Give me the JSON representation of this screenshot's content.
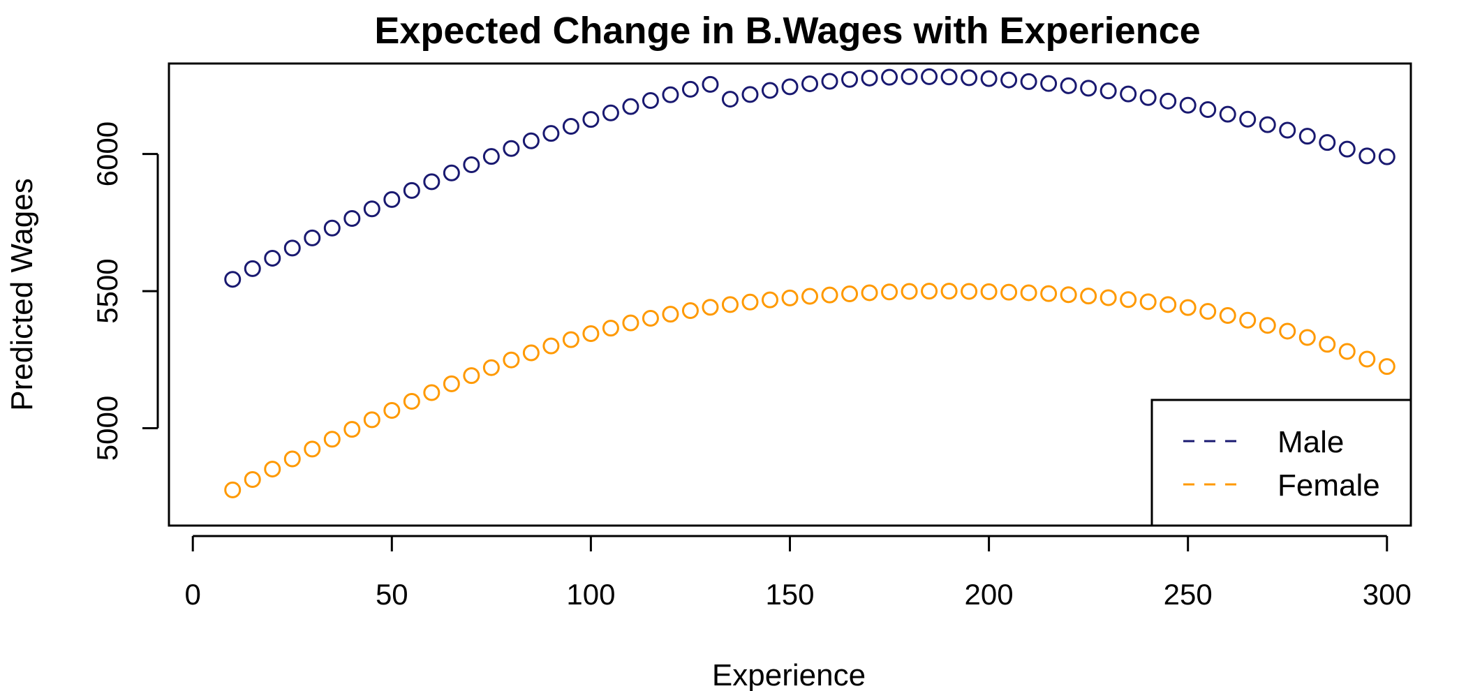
{
  "chart_data": {
    "type": "scatter",
    "title": "Expected Change in B.Wages with Experience",
    "xlabel": "Experience",
    "ylabel": "Predicted Wages",
    "xlim": [
      -6,
      306
    ],
    "ylim": [
      4645,
      6330
    ],
    "x_ticks": [
      0,
      50,
      100,
      150,
      200,
      250,
      300
    ],
    "y_ticks": [
      5000,
      5500,
      6000
    ],
    "grid": false,
    "legend_position": "bottom-right",
    "x": [
      10,
      15,
      20,
      25,
      30,
      35,
      40,
      45,
      50,
      55,
      60,
      65,
      70,
      75,
      80,
      85,
      90,
      95,
      100,
      105,
      110,
      115,
      120,
      125,
      130,
      135,
      140,
      145,
      150,
      155,
      160,
      165,
      170,
      175,
      180,
      185,
      190,
      195,
      200,
      205,
      210,
      215,
      220,
      225,
      230,
      235,
      240,
      245,
      250,
      255,
      260,
      265,
      270,
      275,
      280,
      285,
      290,
      295,
      300
    ],
    "series": [
      {
        "name": "Male",
        "color": "#191970",
        "marker": "open-circle",
        "legend_line": "dashed",
        "values": [
          5543,
          5582,
          5620,
          5657,
          5694,
          5730,
          5765,
          5800,
          5834,
          5867,
          5899,
          5931,
          5961,
          5991,
          6020,
          6048,
          6075,
          6101,
          6126,
          6150,
          6173,
          6195,
          6216,
          6236,
          6254,
          6200,
          6217,
          6232,
          6245,
          6256,
          6265,
          6272,
          6277,
          6280,
          6282,
          6282,
          6281,
          6278,
          6275,
          6270,
          6264,
          6257,
          6249,
          6240,
          6230,
          6219,
          6206,
          6193,
          6178,
          6162,
          6145,
          6127,
          6107,
          6087,
          6065,
          6042,
          6018,
          5993,
          5990
        ]
      },
      {
        "name": "Female",
        "color": "#FF9900",
        "marker": "open-circle",
        "legend_line": "dashed",
        "values": [
          4775,
          4813,
          4851,
          4888,
          4924,
          4960,
          4996,
          5031,
          5065,
          5098,
          5130,
          5162,
          5192,
          5221,
          5249,
          5275,
          5300,
          5323,
          5345,
          5365,
          5384,
          5401,
          5416,
          5429,
          5441,
          5451,
          5460,
          5468,
          5475,
          5481,
          5486,
          5490,
          5494,
          5497,
          5499,
          5500,
          5500,
          5499,
          5498,
          5496,
          5494,
          5491,
          5487,
          5482,
          5476,
          5469,
          5461,
          5451,
          5440,
          5426,
          5411,
          5394,
          5375,
          5354,
          5331,
          5306,
          5280,
          5252,
          5225
        ]
      }
    ]
  }
}
